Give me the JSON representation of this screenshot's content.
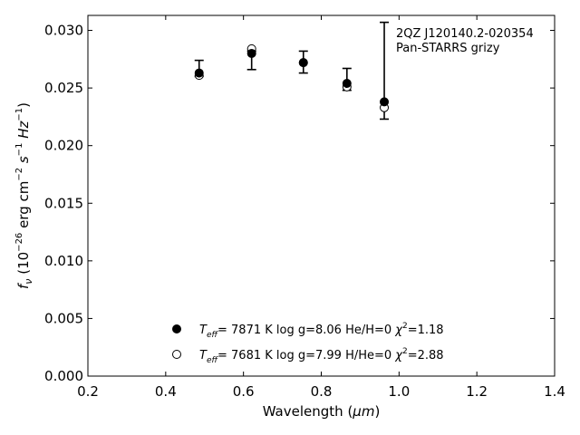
{
  "chart_data": {
    "type": "scatter",
    "xlabel_main": "Wavelength (",
    "xlabel_unit": "μm",
    "xlabel_close": ")",
    "ylabel_fnu": "f",
    "ylabel_nu": "ν",
    "ylabel_rest": " (10",
    "ylabel_exp": "−26",
    "ylabel_units": " erg cm",
    "ylabel_m2": "−2",
    "ylabel_s": " s",
    "ylabel_m1a": "−1",
    "ylabel_hz": " Hz",
    "ylabel_m1b": "−1",
    "ylabel_close": ")",
    "xlim": [
      0.2,
      1.4
    ],
    "ylim": [
      0.0,
      0.0313
    ],
    "xticks": [
      "0.2",
      "0.4",
      "0.6",
      "0.8",
      "1.0",
      "1.2",
      "1.4"
    ],
    "xtick_values": [
      0.2,
      0.4,
      0.6,
      0.8,
      1.0,
      1.2,
      1.4
    ],
    "yticks": [
      "0.000",
      "0.005",
      "0.010",
      "0.015",
      "0.020",
      "0.025",
      "0.030"
    ],
    "ytick_values": [
      0.0,
      0.005,
      0.01,
      0.015,
      0.02,
      0.025,
      0.03
    ],
    "annotation": [
      "2QZ J120140.2-020354",
      "Pan-STARRS grizy"
    ],
    "observed": {
      "x": [
        0.486,
        0.621,
        0.754,
        0.866,
        0.962
      ],
      "y": [
        0.0263,
        0.028,
        0.0272,
        0.0254,
        0.0238
      ],
      "yerr_low": [
        0.026,
        0.0266,
        0.0263,
        0.0248,
        0.0223
      ],
      "yerr_high": [
        0.0274,
        0.0282,
        0.0282,
        0.0267,
        0.0307
      ]
    },
    "series": [
      {
        "name": "T_eff= 7871 K log g=8.06 He/H=0 χ²=1.18",
        "marker": "filled",
        "x": [
          0.486,
          0.621,
          0.754,
          0.866,
          0.962
        ],
        "y": [
          0.0263,
          0.028,
          0.0272,
          0.0254,
          0.0238
        ]
      },
      {
        "name": "T_eff= 7681 K log g=7.99 H/He=0 χ²=2.88",
        "marker": "open",
        "x": [
          0.486,
          0.621,
          0.754,
          0.866,
          0.962
        ],
        "y": [
          0.0261,
          0.0284,
          0.0272,
          0.0251,
          0.0233
        ]
      }
    ],
    "legend": [
      {
        "T": "T",
        "eff": "eff",
        "val": "=  7871 K  log g=8.06  He/H=0  ",
        "chi": "χ",
        "two": "2",
        "chival": "=1.18"
      },
      {
        "T": "T",
        "eff": "eff",
        "val": "=  7681 K  log g=7.99  H/He=0  ",
        "chi": "χ",
        "two": "2",
        "chival": "=2.88"
      }
    ],
    "legend_position": "lower-center",
    "grid": false
  }
}
